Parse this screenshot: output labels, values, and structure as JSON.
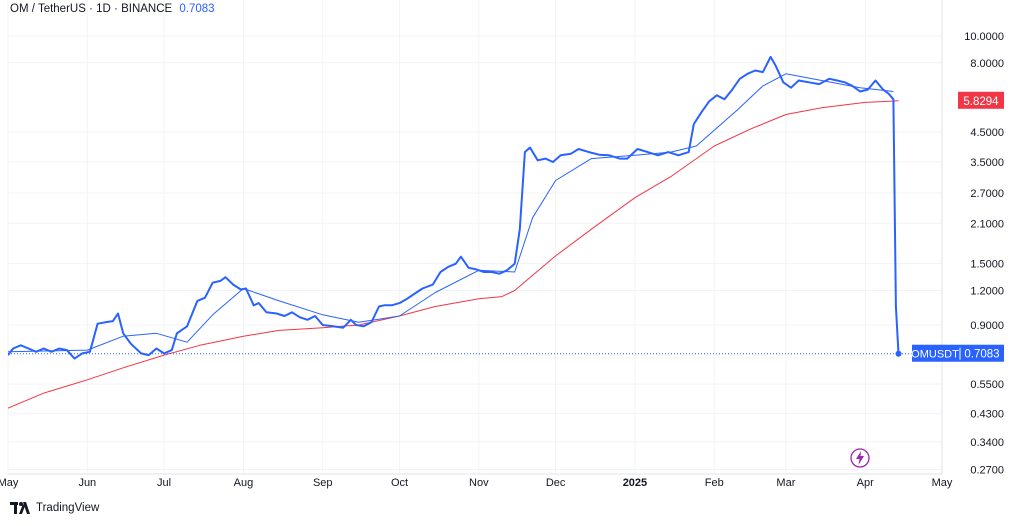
{
  "header": {
    "symbol": "OM",
    "sep1": "/",
    "quote": "TetherUS",
    "sep2": "·",
    "interval": "1D",
    "sep3": "·",
    "exchange": "BINANCE",
    "last_price": "0.7083"
  },
  "footer": {
    "brand": "TradingView"
  },
  "colors": {
    "price_line": "#2962ff",
    "ma_fast": "#2962ff",
    "ma_slow": "#f23645",
    "current_label_bg": "#2962ff",
    "ma_label_bg": "#f23645",
    "axis_text": "#131722"
  },
  "icons": {
    "bottom_right": "lightning-bolt-icon",
    "brand": "tradingview-logo-icon"
  },
  "chart_data": {
    "type": "line",
    "title": "OM / TetherUS · 1D · BINANCE",
    "y_scale": "log",
    "y_ticks": [
      "10.0000",
      "8.0000",
      "4.5000",
      "3.5000",
      "2.7000",
      "2.1000",
      "1.5000",
      "1.2000",
      "0.9000",
      "0.5500",
      "0.4300",
      "0.3400",
      "0.2700"
    ],
    "x_ticks": [
      "May",
      "Jun",
      "Jul",
      "Aug",
      "Sep",
      "Oct",
      "Nov",
      "Dec",
      "2025",
      "Feb",
      "Mar",
      "Apr",
      "May"
    ],
    "x_range": [
      "2024-05-01",
      "2025-05-01"
    ],
    "y_range": [
      0.26,
      13.5
    ],
    "grid": true,
    "legend": "none",
    "series": [
      {
        "name": "OMUSDT",
        "values": [
          [
            "2024-05-01",
            0.7
          ],
          [
            "2024-05-03",
            0.74
          ],
          [
            "2024-05-06",
            0.76
          ],
          [
            "2024-05-09",
            0.74
          ],
          [
            "2024-05-12",
            0.72
          ],
          [
            "2024-05-15",
            0.74
          ],
          [
            "2024-05-18",
            0.72
          ],
          [
            "2024-05-21",
            0.74
          ],
          [
            "2024-05-24",
            0.73
          ],
          [
            "2024-05-27",
            0.68
          ],
          [
            "2024-05-30",
            0.71
          ],
          [
            "2024-06-02",
            0.72
          ],
          [
            "2024-06-05",
            0.91
          ],
          [
            "2024-06-08",
            0.92
          ],
          [
            "2024-06-11",
            0.93
          ],
          [
            "2024-06-13",
            0.99
          ],
          [
            "2024-06-15",
            0.84
          ],
          [
            "2024-06-18",
            0.77
          ],
          [
            "2024-06-22",
            0.71
          ],
          [
            "2024-06-25",
            0.7
          ],
          [
            "2024-06-28",
            0.74
          ],
          [
            "2024-07-01",
            0.71
          ],
          [
            "2024-07-04",
            0.73
          ],
          [
            "2024-07-06",
            0.84
          ],
          [
            "2024-07-10",
            0.89
          ],
          [
            "2024-07-14",
            1.1
          ],
          [
            "2024-07-17",
            1.13
          ],
          [
            "2024-07-20",
            1.28
          ],
          [
            "2024-07-23",
            1.3
          ],
          [
            "2024-07-25",
            1.34
          ],
          [
            "2024-07-28",
            1.26
          ],
          [
            "2024-07-31",
            1.21
          ],
          [
            "2024-08-02",
            1.22
          ],
          [
            "2024-08-05",
            1.06
          ],
          [
            "2024-08-07",
            1.08
          ],
          [
            "2024-08-10",
            1.0
          ],
          [
            "2024-08-14",
            0.99
          ],
          [
            "2024-08-17",
            0.97
          ],
          [
            "2024-08-20",
            1.0
          ],
          [
            "2024-08-23",
            0.96
          ],
          [
            "2024-08-26",
            0.94
          ],
          [
            "2024-08-29",
            0.97
          ],
          [
            "2024-09-01",
            0.9
          ],
          [
            "2024-09-05",
            0.89
          ],
          [
            "2024-09-09",
            0.88
          ],
          [
            "2024-09-12",
            0.94
          ],
          [
            "2024-09-14",
            0.9
          ],
          [
            "2024-09-17",
            0.89
          ],
          [
            "2024-09-20",
            0.92
          ],
          [
            "2024-09-23",
            1.05
          ],
          [
            "2024-09-25",
            1.06
          ],
          [
            "2024-09-28",
            1.06
          ],
          [
            "2024-10-01",
            1.08
          ],
          [
            "2024-10-04",
            1.12
          ],
          [
            "2024-10-07",
            1.17
          ],
          [
            "2024-10-10",
            1.22
          ],
          [
            "2024-10-14",
            1.26
          ],
          [
            "2024-10-17",
            1.4
          ],
          [
            "2024-10-20",
            1.46
          ],
          [
            "2024-10-23",
            1.5
          ],
          [
            "2024-10-25",
            1.59
          ],
          [
            "2024-10-28",
            1.45
          ],
          [
            "2024-10-31",
            1.43
          ],
          [
            "2024-11-03",
            1.4
          ],
          [
            "2024-11-06",
            1.4
          ],
          [
            "2024-11-09",
            1.38
          ],
          [
            "2024-11-12",
            1.42
          ],
          [
            "2024-11-15",
            1.5
          ],
          [
            "2024-11-17",
            2.0
          ],
          [
            "2024-11-19",
            3.8
          ],
          [
            "2024-11-21",
            3.95
          ],
          [
            "2024-11-24",
            3.55
          ],
          [
            "2024-11-27",
            3.6
          ],
          [
            "2024-11-30",
            3.5
          ],
          [
            "2024-12-03",
            3.7
          ],
          [
            "2024-12-07",
            3.75
          ],
          [
            "2024-12-10",
            3.9
          ],
          [
            "2024-12-14",
            3.8
          ],
          [
            "2024-12-18",
            3.72
          ],
          [
            "2024-12-22",
            3.7
          ],
          [
            "2024-12-26",
            3.6
          ],
          [
            "2024-12-29",
            3.6
          ],
          [
            "2025-01-02",
            3.9
          ],
          [
            "2025-01-06",
            3.8
          ],
          [
            "2025-01-10",
            3.7
          ],
          [
            "2025-01-14",
            3.8
          ],
          [
            "2025-01-18",
            3.7
          ],
          [
            "2025-01-22",
            3.8
          ],
          [
            "2025-01-24",
            4.8
          ],
          [
            "2025-01-27",
            5.3
          ],
          [
            "2025-01-30",
            5.8
          ],
          [
            "2025-02-02",
            6.1
          ],
          [
            "2025-02-05",
            5.9
          ],
          [
            "2025-02-08",
            6.4
          ],
          [
            "2025-02-11",
            7.0
          ],
          [
            "2025-02-14",
            7.3
          ],
          [
            "2025-02-17",
            7.5
          ],
          [
            "2025-02-20",
            7.4
          ],
          [
            "2025-02-23",
            8.4
          ],
          [
            "2025-02-25",
            7.8
          ],
          [
            "2025-02-28",
            6.8
          ],
          [
            "2025-03-03",
            6.5
          ],
          [
            "2025-03-06",
            6.9
          ],
          [
            "2025-03-10",
            6.8
          ],
          [
            "2025-03-14",
            6.7
          ],
          [
            "2025-03-18",
            7.0
          ],
          [
            "2025-03-21",
            6.9
          ],
          [
            "2025-03-24",
            6.8
          ],
          [
            "2025-03-27",
            6.6
          ],
          [
            "2025-03-30",
            6.3
          ],
          [
            "2025-04-02",
            6.4
          ],
          [
            "2025-04-05",
            6.9
          ],
          [
            "2025-04-08",
            6.4
          ],
          [
            "2025-04-10",
            6.2
          ],
          [
            "2025-04-12",
            5.9
          ],
          [
            "2025-04-13",
            1.05
          ],
          [
            "2025-04-14",
            0.7083
          ]
        ]
      },
      {
        "name": "",
        "values": [
          [
            "2024-05-01",
            0.72
          ],
          [
            "2024-06-01",
            0.73
          ],
          [
            "2024-06-15",
            0.82
          ],
          [
            "2024-06-28",
            0.84
          ],
          [
            "2024-07-10",
            0.78
          ],
          [
            "2024-07-20",
            0.98
          ],
          [
            "2024-08-01",
            1.22
          ],
          [
            "2024-08-15",
            1.1
          ],
          [
            "2024-09-01",
            0.98
          ],
          [
            "2024-09-15",
            0.92
          ],
          [
            "2024-10-01",
            0.97
          ],
          [
            "2024-10-15",
            1.18
          ],
          [
            "2024-11-01",
            1.42
          ],
          [
            "2024-11-15",
            1.4
          ],
          [
            "2024-11-22",
            2.2
          ],
          [
            "2024-12-01",
            3.0
          ],
          [
            "2024-12-15",
            3.6
          ],
          [
            "2025-01-01",
            3.7
          ],
          [
            "2025-01-15",
            3.8
          ],
          [
            "2025-01-25",
            4.0
          ],
          [
            "2025-02-10",
            5.4
          ],
          [
            "2025-02-20",
            6.6
          ],
          [
            "2025-03-01",
            7.3
          ],
          [
            "2025-03-15",
            6.9
          ],
          [
            "2025-03-30",
            6.5
          ],
          [
            "2025-04-12",
            6.3
          ]
        ]
      },
      {
        "name": "",
        "values": [
          [
            "2024-05-01",
            0.45
          ],
          [
            "2024-05-15",
            0.51
          ],
          [
            "2024-06-01",
            0.57
          ],
          [
            "2024-06-15",
            0.63
          ],
          [
            "2024-07-01",
            0.7
          ],
          [
            "2024-07-15",
            0.76
          ],
          [
            "2024-08-01",
            0.82
          ],
          [
            "2024-08-15",
            0.86
          ],
          [
            "2024-09-01",
            0.88
          ],
          [
            "2024-09-15",
            0.9
          ],
          [
            "2024-10-01",
            0.97
          ],
          [
            "2024-10-15",
            1.05
          ],
          [
            "2024-11-01",
            1.12
          ],
          [
            "2024-11-10",
            1.14
          ],
          [
            "2024-11-15",
            1.2
          ],
          [
            "2024-12-01",
            1.6
          ],
          [
            "2024-12-15",
            2.0
          ],
          [
            "2025-01-01",
            2.6
          ],
          [
            "2025-01-15",
            3.1
          ],
          [
            "2025-02-01",
            4.0
          ],
          [
            "2025-02-15",
            4.6
          ],
          [
            "2025-03-01",
            5.2
          ],
          [
            "2025-03-15",
            5.5
          ],
          [
            "2025-04-01",
            5.75
          ],
          [
            "2025-04-14",
            5.8294
          ]
        ]
      }
    ],
    "price_labels": [
      {
        "text": "5.8294",
        "value": 5.8294
      },
      {
        "symbol": "OMUSDT",
        "text": "0.7083",
        "value": 0.7083
      }
    ]
  }
}
